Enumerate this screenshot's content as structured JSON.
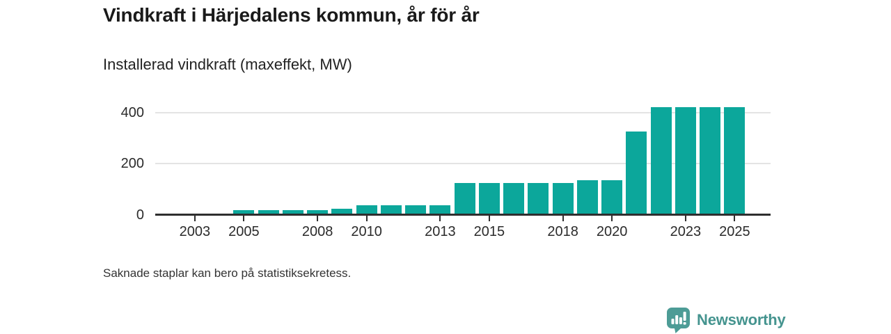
{
  "header": {
    "title": "Vindkraft i Härjedalens kommun, år för år",
    "subtitle": "Installerad vindkraft (maxeffekt, MW)"
  },
  "chart_data": {
    "type": "bar",
    "title": "Vindkraft i Härjedalens kommun, år för år",
    "subtitle": "Installerad vindkraft (maxeffekt, MW)",
    "ylabel": "Installerad vindkraft (maxeffekt, MW)",
    "xlabel": "",
    "unit": "MW",
    "categories": [
      2002,
      2003,
      2004,
      2005,
      2006,
      2007,
      2008,
      2009,
      2010,
      2011,
      2012,
      2013,
      2014,
      2015,
      2016,
      2017,
      2018,
      2019,
      2020,
      2021,
      2022,
      2023,
      2024,
      2025
    ],
    "values": [
      null,
      6,
      6,
      18,
      18,
      20,
      20,
      24,
      38,
      38,
      38,
      38,
      125,
      125,
      125,
      125,
      125,
      135,
      135,
      325,
      420,
      420,
      420,
      420
    ],
    "x_tick_years": [
      2003,
      2005,
      2008,
      2010,
      2013,
      2015,
      2018,
      2020,
      2023,
      2025
    ],
    "y_ticks": [
      0,
      200,
      400
    ],
    "ylim": [
      0,
      440
    ],
    "grid": "horizontal",
    "legend_position": "none",
    "bar_color": "#0ca79b"
  },
  "footnote": "Saknade staplar kan bero på statistiksekretess.",
  "branding": {
    "logo_text": "Newsworthy",
    "logo_text_color": "#45948f",
    "logo_bubble_color": "#4d9c96",
    "logo_icon": "bar-chart-speech-bubble-icon"
  },
  "colors": {
    "bar": "#0ca79b",
    "grid_line": "#e4e4e4",
    "axis_line": "#2e2e2e",
    "axis_text": "#2b2b2b",
    "title_text": "#1a1a1a",
    "background": "#ffffff"
  }
}
